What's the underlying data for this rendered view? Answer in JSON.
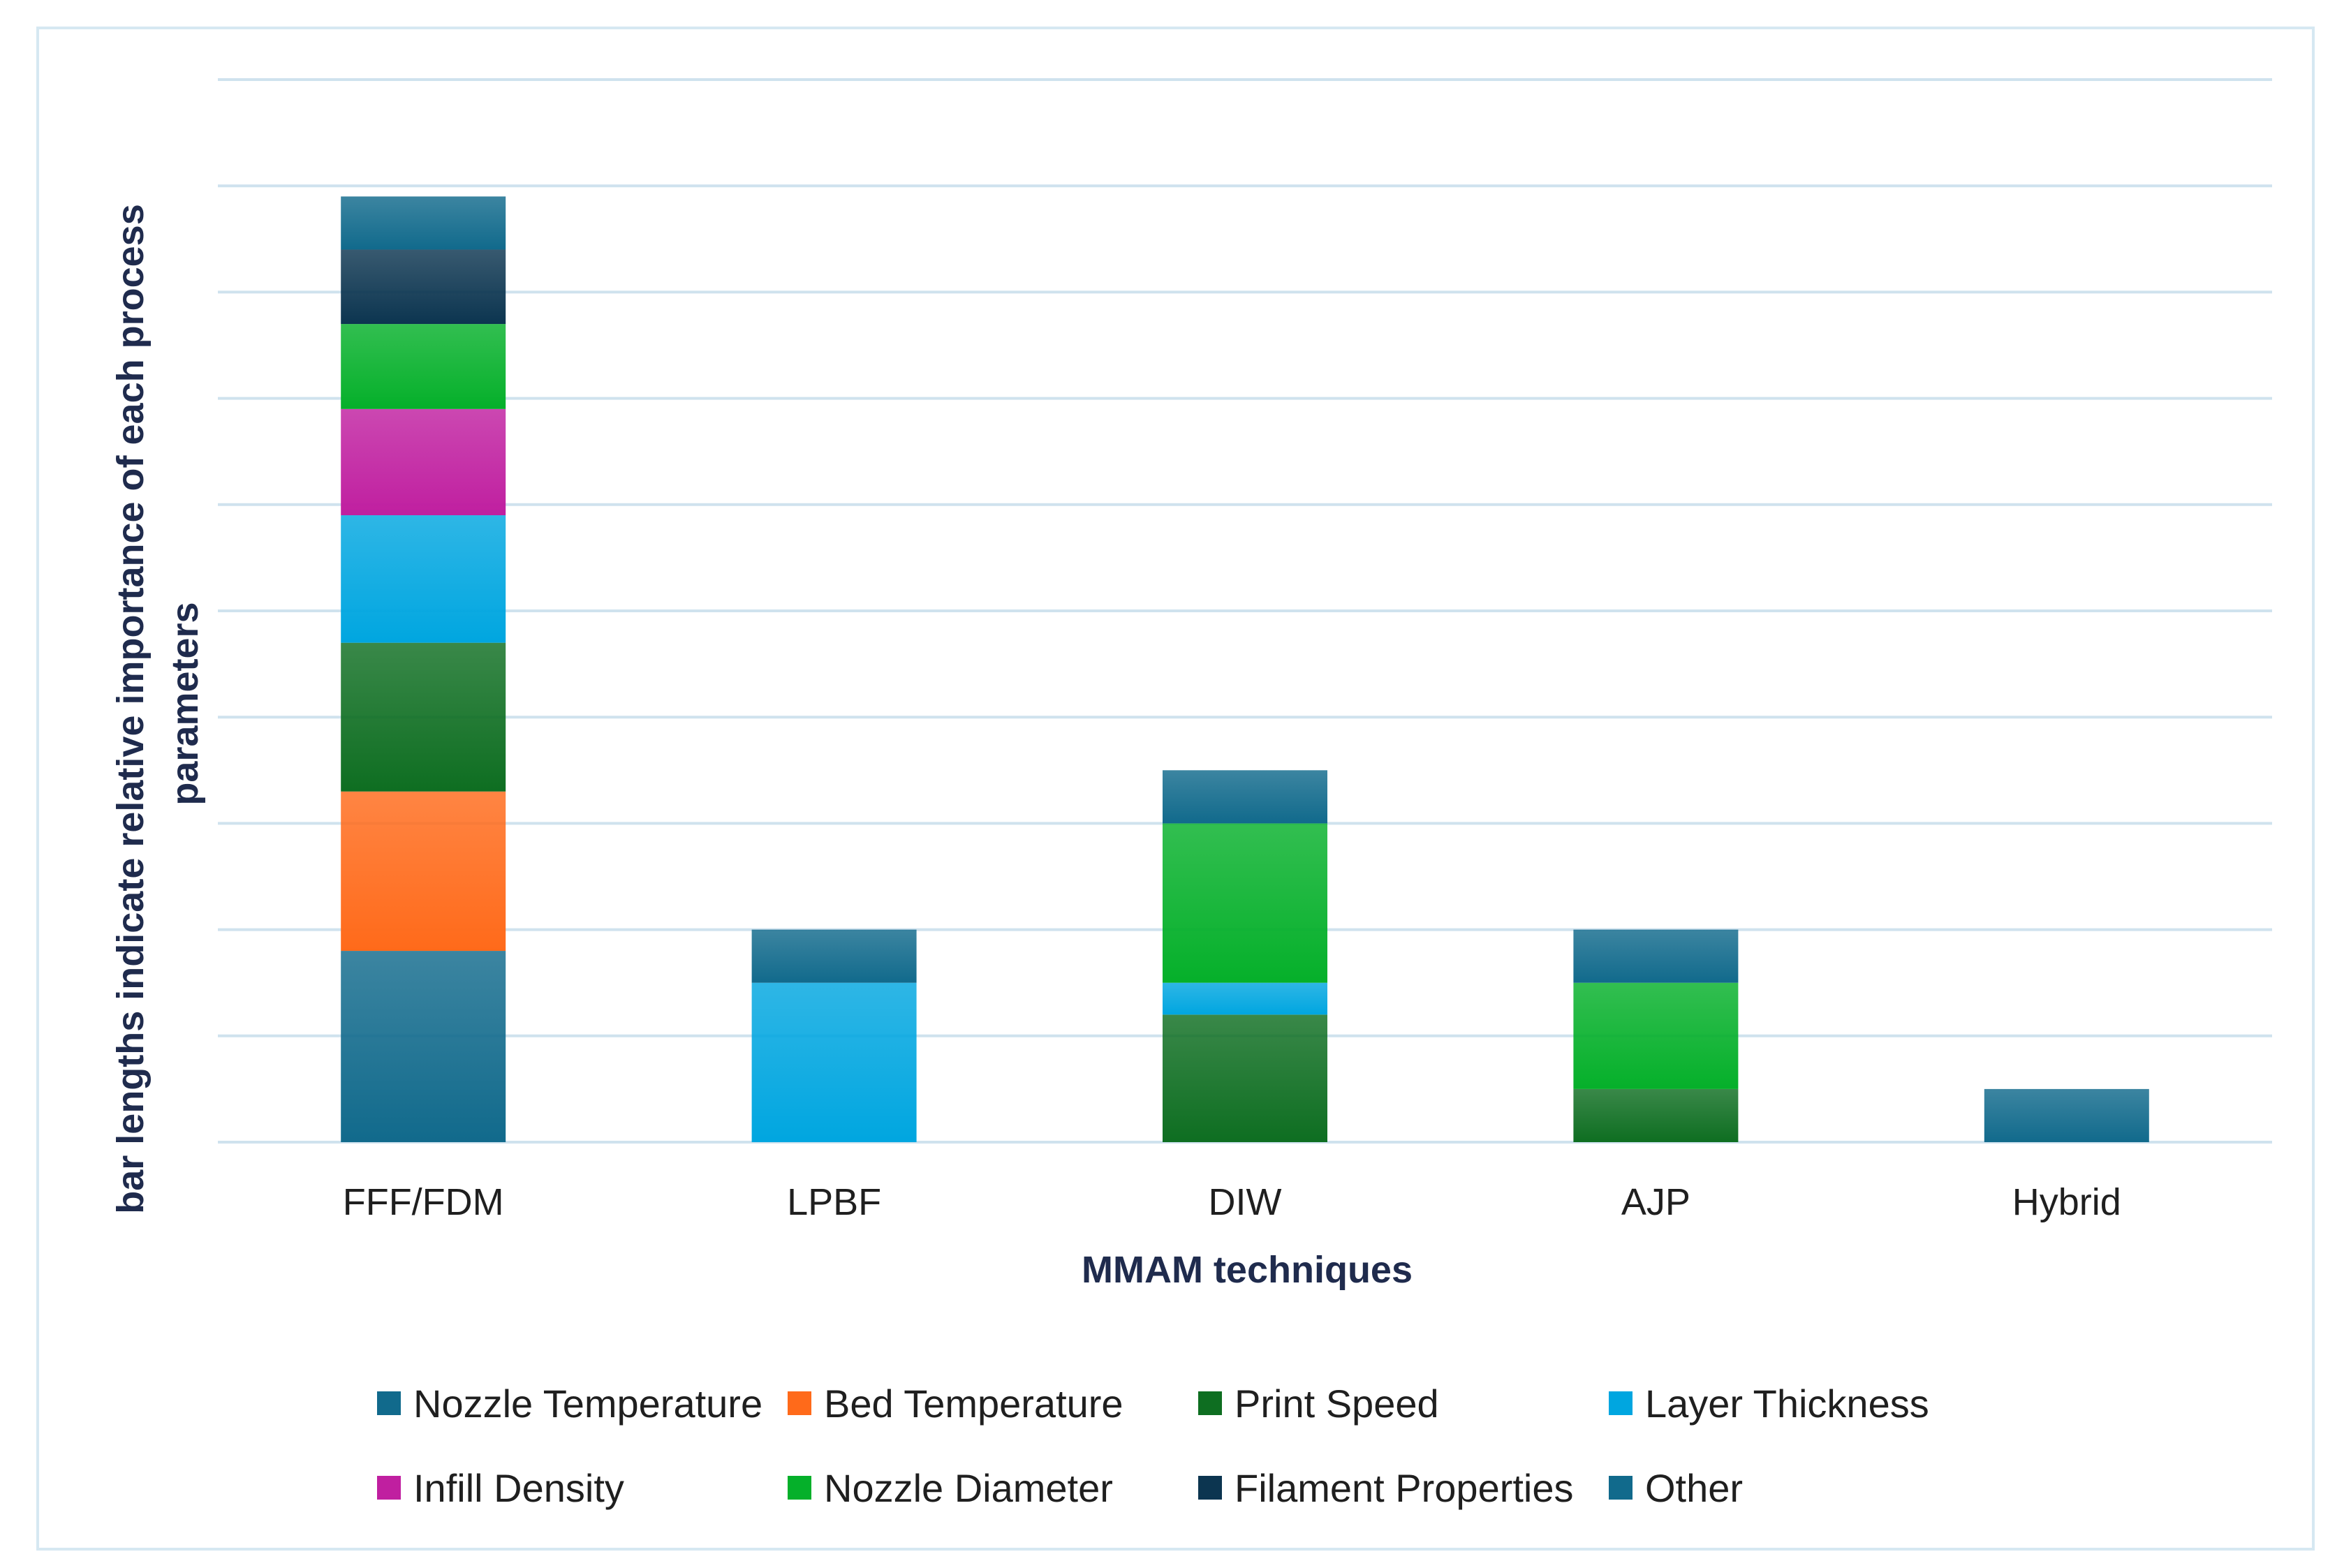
{
  "chart_data": {
    "type": "bar",
    "stacked": true,
    "title": "",
    "xlabel": "MMAM techniques",
    "ylabel_lines": [
      "bar lengths indicate relative importance of each process",
      "parameters"
    ],
    "categories": [
      "FFF/FDM",
      "LPBF",
      "DIW",
      "AJP",
      "Hybrid"
    ],
    "ylim": [
      0,
      10
    ],
    "y_tick_labels_shown": false,
    "grid": true,
    "legend_position": "bottom",
    "series": [
      {
        "name": "Nozzle Temperature",
        "color": "#116a8c",
        "values": [
          1.8,
          0,
          0,
          0,
          0
        ]
      },
      {
        "name": "Bed Temperature",
        "color": "#ff6a1a",
        "values": [
          1.5,
          0,
          0,
          0,
          0
        ]
      },
      {
        "name": "Print Speed",
        "color": "#0e6e21",
        "values": [
          1.4,
          0,
          1.2,
          0.5,
          0
        ]
      },
      {
        "name": "Layer Thickness",
        "color": "#00a6e0",
        "values": [
          1.2,
          1.5,
          0.3,
          0,
          0
        ]
      },
      {
        "name": "Infill Density",
        "color": "#c01fa0",
        "values": [
          1.0,
          0,
          0,
          0,
          0
        ]
      },
      {
        "name": "Nozzle Diameter",
        "color": "#05b02a",
        "values": [
          0.8,
          0,
          1.5,
          1.0,
          0
        ]
      },
      {
        "name": "Filament Properties",
        "color": "#0c3550",
        "values": [
          0.7,
          0,
          0,
          0,
          0
        ]
      },
      {
        "name": "Other",
        "color": "#116a8c",
        "values": [
          0.5,
          0.5,
          0.5,
          0.5,
          0.5
        ]
      }
    ]
  }
}
